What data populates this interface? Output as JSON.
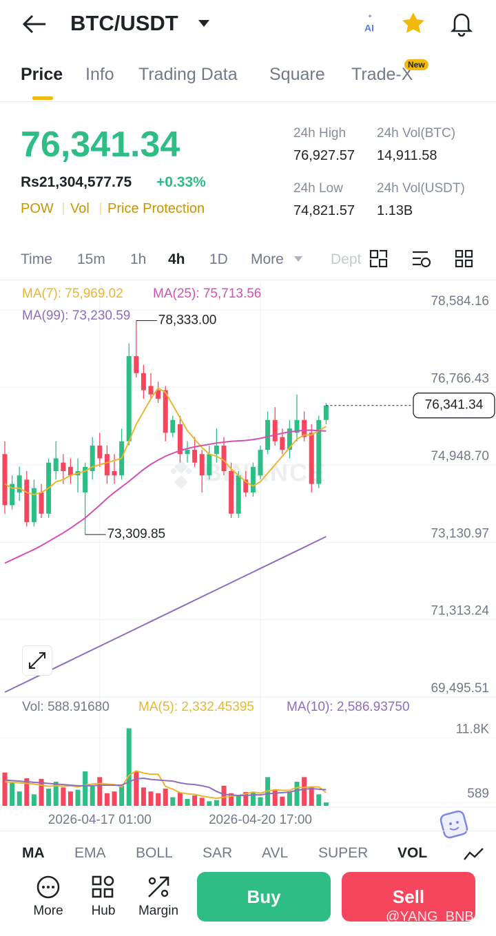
{
  "header": {
    "pair": "BTC/USDT"
  },
  "tabs": [
    "Price",
    "Info",
    "Trading Data",
    "Square",
    "Trade-X"
  ],
  "new_badge": "New",
  "ticker": {
    "last": "76,341.34",
    "fiat": "Rs21,304,577.75",
    "change": "+0.33%",
    "tags": [
      "POW",
      "Vol",
      "Price Protection"
    ],
    "stats": [
      {
        "label": "24h High",
        "value": "76,927.57"
      },
      {
        "label": "24h Vol(BTC)",
        "value": "14,911.58"
      },
      {
        "label": "24h Low",
        "value": "74,821.57"
      },
      {
        "label": "24h Vol(USDT)",
        "value": "1.13B"
      }
    ]
  },
  "intervals": [
    "Time",
    "15m",
    "1h",
    "4h",
    "1D",
    "More",
    "Dept"
  ],
  "brand": "BINANCE",
  "chart_data": [
    {
      "type": "candlestick",
      "up_color": "#2ebd85",
      "down_color": "#f6465d",
      "grid": true,
      "categories": [
        null,
        null,
        null,
        null,
        null,
        null,
        null,
        null,
        null,
        null,
        null,
        null,
        null,
        "2026-04-17 01:00",
        null,
        null,
        null,
        null,
        null,
        null,
        null,
        null,
        null,
        null,
        null,
        null,
        null,
        null,
        null,
        null,
        null,
        null,
        null,
        null,
        null,
        "2026-04-20 17:00",
        null,
        null,
        null,
        null,
        null,
        null,
        null,
        null,
        null
      ],
      "open": [
        75200,
        74000,
        74300,
        74600,
        73600,
        74300,
        73800,
        74800,
        75000,
        74900,
        74700,
        74300,
        74800,
        75400,
        75200,
        74800,
        74700,
        75500,
        77500,
        77100,
        76800,
        76700,
        76700,
        75700,
        75900,
        75200,
        75300,
        75200,
        74700,
        75200,
        75400,
        74800,
        73800,
        74600,
        74300,
        74700,
        75300,
        76000,
        75600,
        75300,
        75700,
        76000,
        75700,
        74500,
        76000
      ],
      "high": [
        75500,
        74700,
        74900,
        74800,
        74600,
        74500,
        75100,
        75500,
        75200,
        75100,
        75100,
        75000,
        75600,
        75700,
        75400,
        75200,
        75800,
        77800,
        78333,
        77300,
        77100,
        76900,
        76800,
        76100,
        76100,
        75500,
        75600,
        75300,
        75400,
        75800,
        75600,
        75000,
        74800,
        74800,
        75000,
        75400,
        76200,
        76300,
        75800,
        76000,
        76600,
        76200,
        75900,
        76100,
        76400
      ],
      "low": [
        73800,
        73900,
        74100,
        73500,
        73500,
        73700,
        73700,
        74600,
        74500,
        74500,
        74300,
        73309.85,
        74600,
        74900,
        74500,
        74500,
        74600,
        75400,
        77000,
        76500,
        76500,
        76400,
        75500,
        75600,
        75000,
        75000,
        74900,
        74300,
        74600,
        75000,
        74700,
        73700,
        73700,
        74200,
        74200,
        74600,
        75200,
        75400,
        75200,
        75100,
        75500,
        75500,
        74300,
        74400,
        75900
      ],
      "close": [
        74000,
        74500,
        74700,
        73600,
        74400,
        73800,
        75000,
        75100,
        74800,
        74700,
        74800,
        74900,
        75400,
        75100,
        74700,
        74700,
        75500,
        77500,
        77100,
        76700,
        76600,
        76500,
        75700,
        76000,
        75200,
        75300,
        75000,
        74700,
        75200,
        75400,
        74800,
        73800,
        74700,
        74300,
        74900,
        75300,
        76000,
        75500,
        75300,
        75800,
        76000,
        75600,
        74500,
        76000,
        76341.34
      ],
      "series": [
        {
          "name": "MA(7)",
          "legend": "MA(7): 75,969.02",
          "color": "#e9b62f",
          "values": [
            74500,
            74400,
            74400,
            74300,
            74250,
            74300,
            74400,
            74550,
            74600,
            74700,
            74750,
            74800,
            74900,
            74950,
            75000,
            75050,
            75100,
            75500,
            75900,
            76200,
            76500,
            76750,
            76650,
            76350,
            76050,
            75750,
            75550,
            75350,
            75200,
            75150,
            75050,
            74850,
            74700,
            74550,
            74450,
            74550,
            74750,
            74950,
            75150,
            75350,
            75550,
            75650,
            75650,
            75750,
            75850
          ]
        },
        {
          "name": "MA(25)",
          "legend": "MA(25): 75,713.56",
          "color": "#d54fb3",
          "values": [
            72640,
            72720,
            72800,
            72880,
            72960,
            73050,
            73150,
            73250,
            73350,
            73460,
            73580,
            73700,
            73850,
            74000,
            74160,
            74300,
            74430,
            74560,
            74700,
            74840,
            74960,
            75060,
            75150,
            75220,
            75280,
            75330,
            75370,
            75400,
            75430,
            75460,
            75480,
            75500,
            75510,
            75520,
            75540,
            75570,
            75610,
            75650,
            75690,
            75720,
            75740,
            75760,
            75760,
            75750,
            75740
          ]
        },
        {
          "name": "MA(99)",
          "legend": "MA(99): 73,230.59",
          "color": "#8e6cc0",
          "values": [
            69610,
            69693,
            69776,
            69859,
            69942,
            70025,
            70108,
            70191,
            70274,
            70357,
            70440,
            70523,
            70606,
            70689,
            70772,
            70855,
            70938,
            71021,
            71104,
            71187,
            71270,
            71353,
            71436,
            71519,
            71602,
            71685,
            71768,
            71851,
            71934,
            72017,
            72100,
            72183,
            72266,
            72349,
            72432,
            72515,
            72598,
            72681,
            72764,
            72847,
            72930,
            73013,
            73096,
            73179,
            73262
          ]
        }
      ],
      "ylim": [
        69529,
        79231
      ],
      "yticks": [
        {
          "value": 78584.16,
          "label": "78,584.16"
        },
        {
          "value": 76766.43,
          "label": "76,766.43"
        },
        {
          "value": 74948.7,
          "label": "74,948.70"
        },
        {
          "value": 73130.97,
          "label": "73,130.97"
        },
        {
          "value": 71313.24,
          "label": "71,313.24"
        },
        {
          "value": 69495.51,
          "label": "69,495.51"
        }
      ],
      "last_price": {
        "value": 76341.34,
        "label": "76,341.34"
      },
      "annotations": [
        {
          "value": 78333,
          "label": "78,333.00"
        },
        {
          "value": 73309.85,
          "label": "73,309.85"
        }
      ]
    },
    {
      "type": "bar",
      "legend": "Vol: 588.91680",
      "values": [
        5800,
        4000,
        2500,
        4800,
        2000,
        4700,
        3000,
        4200,
        3200,
        2500,
        2800,
        6000,
        3500,
        5000,
        2200,
        2500,
        3500,
        13500,
        6000,
        3200,
        2500,
        2200,
        3000,
        1500,
        2300,
        1200,
        1800,
        1400,
        800,
        1000,
        3500,
        2200,
        1800,
        2400,
        2300,
        1500,
        5000,
        2800,
        1600,
        2500,
        4200,
        5000,
        3400,
        2000,
        588.9168
      ],
      "series": [
        {
          "name": "MA(5)",
          "legend": "MA(5): 2,332.45395",
          "color": "#e9b62f",
          "values": [
            4200,
            4100,
            4000,
            3900,
            3800,
            3600,
            3400,
            3500,
            3400,
            3500,
            3300,
            3600,
            3800,
            3900,
            3800,
            3700,
            3300,
            5300,
            6100,
            5700,
            5500,
            5500,
            3400,
            2900,
            2300,
            2100,
            2000,
            1700,
            1500,
            1300,
            1500,
            1700,
            1800,
            2100,
            2400,
            2200,
            2600,
            2800,
            2700,
            2700,
            3200,
            3200,
            3300,
            3300,
            2300
          ]
        },
        {
          "name": "MA(10)",
          "legend": "MA(10): 2,586.93750",
          "color": "#8e6cc0",
          "values": [
            4500,
            4400,
            4300,
            4200,
            4100,
            4000,
            3900,
            3800,
            3700,
            3600,
            3500,
            3500,
            3500,
            3600,
            3600,
            3600,
            3600,
            4200,
            4700,
            4800,
            4600,
            4500,
            4400,
            4300,
            4000,
            3800,
            3700,
            3500,
            3200,
            2500,
            2000,
            1900,
            1800,
            1800,
            1900,
            1900,
            2100,
            2200,
            2300,
            2400,
            2700,
            2900,
            3000,
            2900,
            2800
          ]
        }
      ],
      "ylim": [
        0,
        15000
      ],
      "yticks": [
        {
          "value": 11800,
          "label": "11.8K"
        },
        589
      ]
    }
  ],
  "indicators": [
    "MA",
    "EMA",
    "BOLL",
    "SAR",
    "AVL",
    "SUPER",
    "VOL"
  ],
  "actions": [
    "More",
    "Hub",
    "Margin"
  ],
  "buy": "Buy",
  "sell": "Sell",
  "watermark": "@YANG_BNB"
}
